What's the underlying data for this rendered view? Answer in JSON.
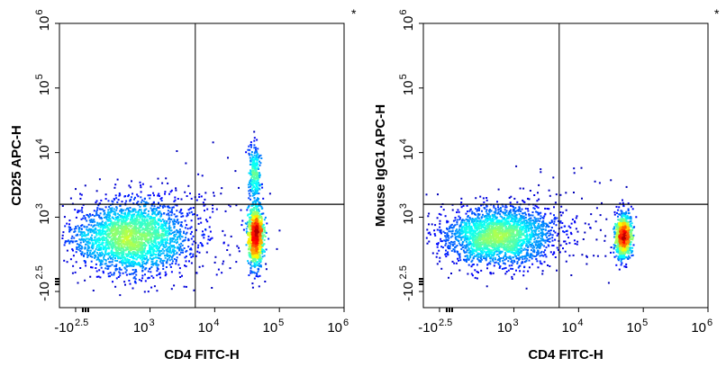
{
  "chart_data": [
    {
      "type": "scatter",
      "subtype": "flow-cytometry-density-dot-plot",
      "xlabel": "CD4 FITC-H",
      "ylabel": "CD25 APC-H",
      "annotation": "*",
      "x_ticks": [
        {
          "base": "-10",
          "exp": "2.5",
          "pos": -2.5
        },
        {
          "base": "10",
          "exp": "3",
          "pos": 3
        },
        {
          "base": "10",
          "exp": "4",
          "pos": 4
        },
        {
          "base": "10",
          "exp": "5",
          "pos": 5
        },
        {
          "base": "10",
          "exp": "6",
          "pos": 6
        }
      ],
      "y_ticks": [
        {
          "base": "-10",
          "exp": "2.5",
          "pos": -2.5
        },
        {
          "base": "10",
          "exp": "3",
          "pos": 3
        },
        {
          "base": "10",
          "exp": "4",
          "pos": 4
        },
        {
          "base": "10",
          "exp": "5",
          "pos": 5
        },
        {
          "base": "10",
          "exp": "6",
          "pos": 6
        }
      ],
      "gate": {
        "x": 3.7,
        "y": 3.2
      },
      "populations": [
        {
          "name": "CD4- cluster",
          "cx": 2.7,
          "cy": 2.7,
          "sx": 0.9,
          "sy": 0.55,
          "n": 2600
        },
        {
          "name": "CD4+ cluster",
          "cx": 4.62,
          "cy": 2.72,
          "sx": 0.12,
          "sy": 0.45,
          "n": 1100
        },
        {
          "name": "CD4+ CD25 tail",
          "cx": 4.6,
          "cy": 3.7,
          "sx": 0.09,
          "sy": 0.45,
          "n": 260
        },
        {
          "name": "sparse events",
          "cx": 3.5,
          "cy": 3.0,
          "sx": 1.2,
          "sy": 0.9,
          "n": 160
        }
      ]
    },
    {
      "type": "scatter",
      "subtype": "flow-cytometry-density-dot-plot",
      "xlabel": "CD4 FITC-H",
      "ylabel": "Mouse IgG1 APC-H",
      "annotation": "*",
      "x_ticks": [
        {
          "base": "-10",
          "exp": "2.5",
          "pos": -2.5
        },
        {
          "base": "10",
          "exp": "3",
          "pos": 3
        },
        {
          "base": "10",
          "exp": "4",
          "pos": 4
        },
        {
          "base": "10",
          "exp": "5",
          "pos": 5
        },
        {
          "base": "10",
          "exp": "6",
          "pos": 6
        }
      ],
      "y_ticks": [
        {
          "base": "-10",
          "exp": "2.5",
          "pos": -2.5
        },
        {
          "base": "10",
          "exp": "3",
          "pos": 3
        },
        {
          "base": "10",
          "exp": "4",
          "pos": 4
        },
        {
          "base": "10",
          "exp": "5",
          "pos": 5
        },
        {
          "base": "10",
          "exp": "6",
          "pos": 6
        }
      ],
      "gate": {
        "x": 3.7,
        "y": 3.2
      },
      "populations": [
        {
          "name": "CD4- cluster",
          "cx": 2.75,
          "cy": 2.72,
          "sx": 0.85,
          "sy": 0.45,
          "n": 2500
        },
        {
          "name": "CD4+ cluster",
          "cx": 4.68,
          "cy": 2.72,
          "sx": 0.12,
          "sy": 0.33,
          "n": 1000
        },
        {
          "name": "sparse events",
          "cx": 3.6,
          "cy": 3.1,
          "sx": 1.1,
          "sy": 0.8,
          "n": 90
        }
      ]
    }
  ]
}
